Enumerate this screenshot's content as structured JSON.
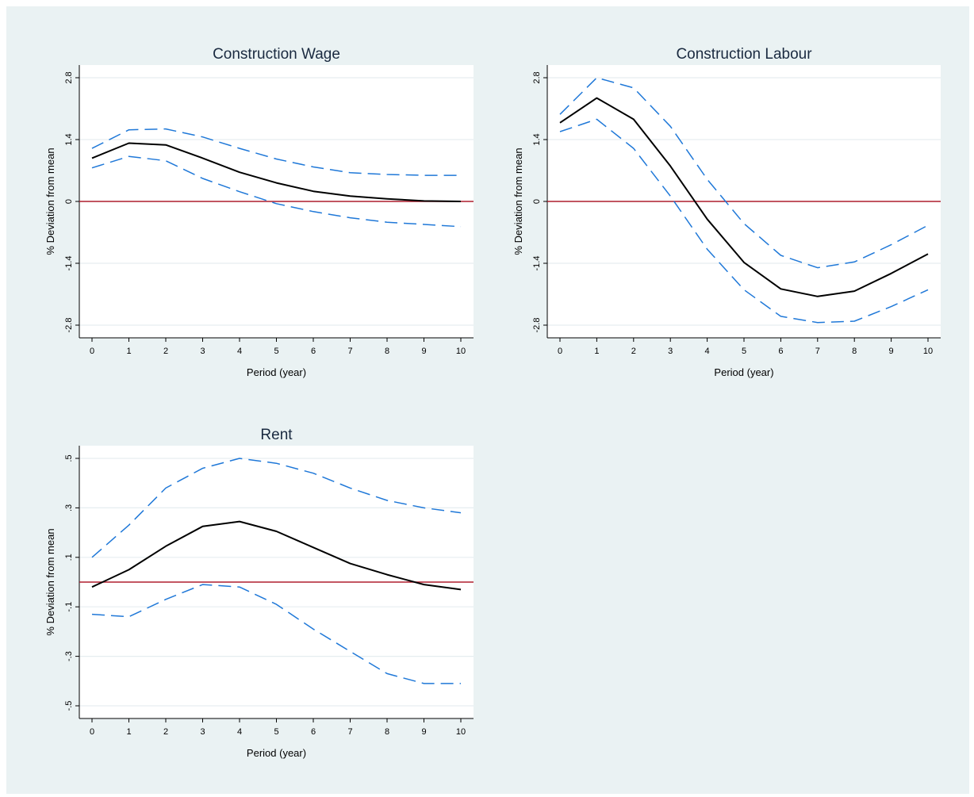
{
  "colors": {
    "background": "#eaf2f3",
    "plot_area": "#ffffff",
    "estimate": "#000000",
    "confidence_band": "#1f78d8",
    "zero_line": "#b01e2e",
    "grid": "#e6eef0"
  },
  "chart_data": [
    {
      "type": "line",
      "title": "Construction Wage",
      "xlabel": "Period (year)",
      "ylabel": "% Deviation from mean",
      "xlim": [
        0,
        10
      ],
      "ylim": [
        -2.8,
        2.8
      ],
      "x_ticks": [
        0,
        1,
        2,
        3,
        4,
        5,
        6,
        7,
        8,
        9,
        10
      ],
      "y_ticks": [
        -2.8,
        -1.4,
        0,
        1.4,
        2.8
      ],
      "y_tick_labels": [
        "-2.8",
        "-1.4",
        "0",
        "1.4",
        "2.8"
      ],
      "grid": true,
      "reference_line": 0,
      "x": [
        0,
        1,
        2,
        3,
        4,
        5,
        6,
        7,
        8,
        9,
        10
      ],
      "series": [
        {
          "role": "estimate",
          "values": [
            0.98,
            1.32,
            1.28,
            0.98,
            0.66,
            0.42,
            0.23,
            0.12,
            0.06,
            0.01,
            0.0
          ]
        },
        {
          "role": "upper",
          "values": [
            1.2,
            1.62,
            1.64,
            1.46,
            1.2,
            0.96,
            0.78,
            0.65,
            0.61,
            0.59,
            0.59
          ]
        },
        {
          "role": "lower",
          "values": [
            0.76,
            1.02,
            0.92,
            0.52,
            0.22,
            -0.05,
            -0.23,
            -0.37,
            -0.47,
            -0.52,
            -0.57
          ]
        }
      ]
    },
    {
      "type": "line",
      "title": "Construction Labour",
      "xlabel": "Period (year)",
      "ylabel": "% Deviation from mean",
      "xlim": [
        0,
        10
      ],
      "ylim": [
        -2.8,
        2.8
      ],
      "x_ticks": [
        0,
        1,
        2,
        3,
        4,
        5,
        6,
        7,
        8,
        9,
        10
      ],
      "y_ticks": [
        -2.8,
        -1.4,
        0,
        1.4,
        2.8
      ],
      "y_tick_labels": [
        "-2.8",
        "-1.4",
        "0",
        "1.4",
        "2.8"
      ],
      "grid": true,
      "reference_line": 0,
      "x": [
        0,
        1,
        2,
        3,
        4,
        5,
        6,
        7,
        8,
        9,
        10
      ],
      "series": [
        {
          "role": "estimate",
          "values": [
            1.78,
            2.34,
            1.86,
            0.8,
            -0.4,
            -1.38,
            -1.98,
            -2.15,
            -2.03,
            -1.63,
            -1.19
          ]
        },
        {
          "role": "upper",
          "values": [
            1.97,
            2.8,
            2.57,
            1.7,
            0.5,
            -0.5,
            -1.22,
            -1.5,
            -1.37,
            -0.98,
            -0.54
          ]
        },
        {
          "role": "lower",
          "values": [
            1.58,
            1.86,
            1.2,
            0.12,
            -1.08,
            -2.0,
            -2.6,
            -2.74,
            -2.71,
            -2.38,
            -2.0
          ]
        }
      ]
    },
    {
      "type": "line",
      "title": "Rent",
      "xlabel": "Period (year)",
      "ylabel": "% Deviation from mean",
      "xlim": [
        0,
        10
      ],
      "ylim": [
        -0.5,
        0.5
      ],
      "x_ticks": [
        0,
        1,
        2,
        3,
        4,
        5,
        6,
        7,
        8,
        9,
        10
      ],
      "y_ticks": [
        -0.5,
        -0.3,
        -0.1,
        0.1,
        0.3,
        0.5
      ],
      "y_tick_labels": [
        "-.5",
        "-.3",
        "-.1",
        ".1",
        ".3",
        ".5"
      ],
      "grid": true,
      "reference_line": 0,
      "x": [
        0,
        1,
        2,
        3,
        4,
        5,
        6,
        7,
        8,
        9,
        10
      ],
      "series": [
        {
          "role": "estimate",
          "values": [
            -0.02,
            0.05,
            0.145,
            0.225,
            0.245,
            0.205,
            0.14,
            0.075,
            0.03,
            -0.01,
            -0.03
          ]
        },
        {
          "role": "upper",
          "values": [
            0.1,
            0.23,
            0.38,
            0.46,
            0.5,
            0.48,
            0.44,
            0.38,
            0.33,
            0.3,
            0.28
          ]
        },
        {
          "role": "lower",
          "values": [
            -0.13,
            -0.14,
            -0.07,
            -0.01,
            -0.02,
            -0.09,
            -0.19,
            -0.28,
            -0.37,
            -0.41,
            -0.41
          ]
        }
      ]
    }
  ]
}
